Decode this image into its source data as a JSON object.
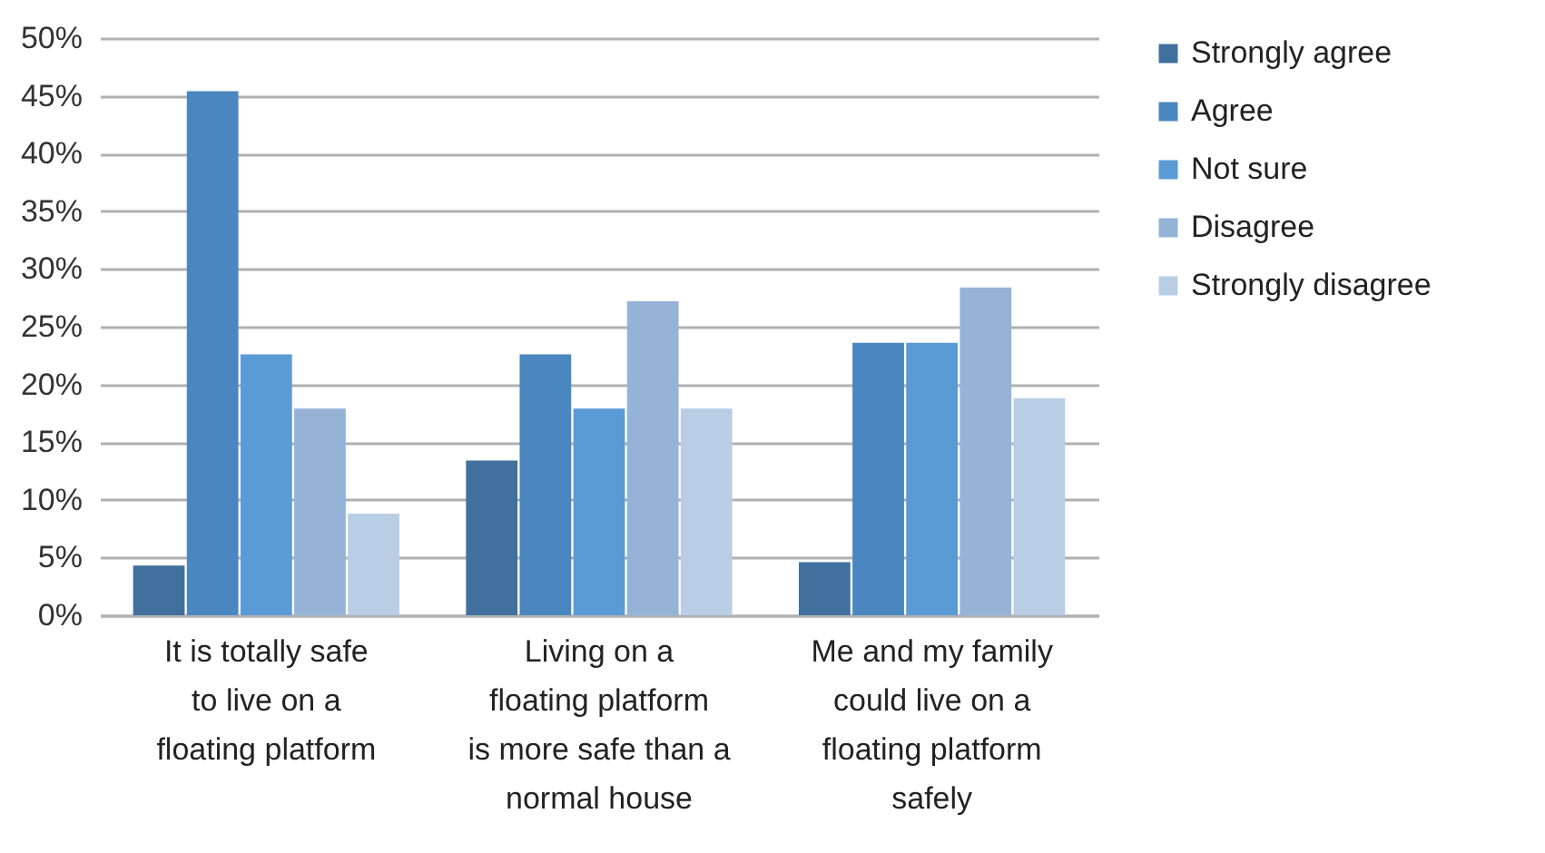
{
  "chart_data": {
    "type": "bar",
    "categories": [
      "It is totally safe to live on a floating platform",
      "Living on a floating platform is more safe than a normal house",
      "Me and my family could live on a floating platform safely"
    ],
    "series": [
      {
        "name": "Strongly agree",
        "color": "#41709e",
        "values": [
          4.3,
          13.4,
          4.6
        ]
      },
      {
        "name": "Agree",
        "color": "#4a86c0",
        "values": [
          45.4,
          22.6,
          23.6
        ]
      },
      {
        "name": "Not sure",
        "color": "#5b9bd5",
        "values": [
          22.6,
          17.9,
          23.6
        ]
      },
      {
        "name": "Disagree",
        "color": "#95b3d7",
        "values": [
          17.9,
          27.2,
          28.4
        ]
      },
      {
        "name": "Strongly disagree",
        "color": "#b9cde5",
        "values": [
          8.8,
          17.9,
          18.8
        ]
      }
    ],
    "ylim": [
      0,
      50
    ],
    "yticks": [
      {
        "value": 0,
        "label": "0%"
      },
      {
        "value": 5,
        "label": "5%"
      },
      {
        "value": 10,
        "label": "10%"
      },
      {
        "value": 15,
        "label": "15%"
      },
      {
        "value": 20,
        "label": "20%"
      },
      {
        "value": 25,
        "label": "25%"
      },
      {
        "value": 30,
        "label": "30%"
      },
      {
        "value": 35,
        "label": "35%"
      },
      {
        "value": 40,
        "label": "40%"
      },
      {
        "value": 45,
        "label": "45%"
      },
      {
        "value": 50,
        "label": "50%"
      }
    ],
    "grid": "y",
    "legend": "right"
  }
}
